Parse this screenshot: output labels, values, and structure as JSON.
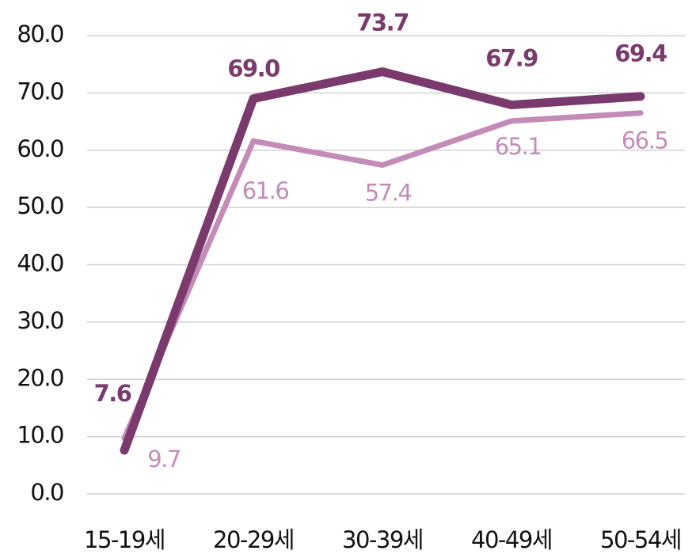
{
  "chart_data": {
    "type": "line",
    "categories": [
      "15-19세",
      "20-29세",
      "30-39세",
      "40-49세",
      "50-54세"
    ],
    "series": [
      {
        "color": "#7b3a6e",
        "values": [
          7.6,
          69.0,
          73.7,
          67.9,
          69.4
        ],
        "value_labels": [
          "7.6",
          "69.0",
          "73.7",
          "67.9",
          "69.4"
        ]
      },
      {
        "color": "#c48bb8",
        "values": [
          9.7,
          61.6,
          57.4,
          65.1,
          66.5
        ],
        "value_labels": [
          "9.7",
          "61.6",
          "57.4",
          "65.1",
          "66.5"
        ]
      }
    ],
    "ylim": [
      0,
      80
    ],
    "yticks": [
      {
        "value": 0,
        "label": "0.0"
      },
      {
        "value": 10,
        "label": "10.0"
      },
      {
        "value": 20,
        "label": "20.0"
      },
      {
        "value": 30,
        "label": "30.0"
      },
      {
        "value": 40,
        "label": "40.0"
      },
      {
        "value": 50,
        "label": "50.0"
      },
      {
        "value": 60,
        "label": "60.0"
      },
      {
        "value": 70,
        "label": "70.0"
      },
      {
        "value": 80,
        "label": "80.0"
      }
    ],
    "grid": true
  }
}
